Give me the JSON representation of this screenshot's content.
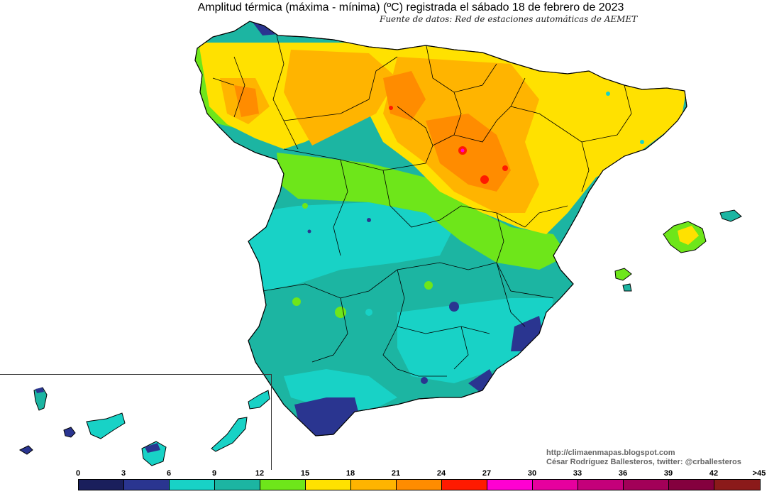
{
  "title": "Amplitud térmica (máxima - mínima) (ºC) registrada el sábado 18 de febrero de 2023",
  "subtitle": "Fuente de datos: Red de estaciones automáticas de AEMET",
  "credit": {
    "url": "http://climaenmapas.blogspot.com",
    "author": "César Rodríguez Ballesteros, twitter: @crballesteros"
  },
  "legend": {
    "ticks": [
      "0",
      "3",
      "6",
      "9",
      "12",
      "15",
      "18",
      "21",
      "24",
      "27",
      "30",
      "33",
      "36",
      "39",
      "42",
      ">45"
    ],
    "colors": [
      "#1a1f5c",
      "#2a3590",
      "#18d2c6",
      "#1cb5a2",
      "#6ee61a",
      "#ffe100",
      "#ffb400",
      "#ff8c00",
      "#ff1a00",
      "#ff00d2",
      "#e6009e",
      "#c4007a",
      "#a20058",
      "#84003e",
      "#8b1a1a"
    ]
  },
  "map_colors": {
    "low_3_6": "#2a3590",
    "v6_9": "#18d2c6",
    "v9_12": "#1cb5a2",
    "v12_15": "#6ee61a",
    "v15_18": "#ffe100",
    "v18_21": "#ffb400",
    "v21_24": "#ff8c00",
    "v24_27": "#ff1a00"
  }
}
